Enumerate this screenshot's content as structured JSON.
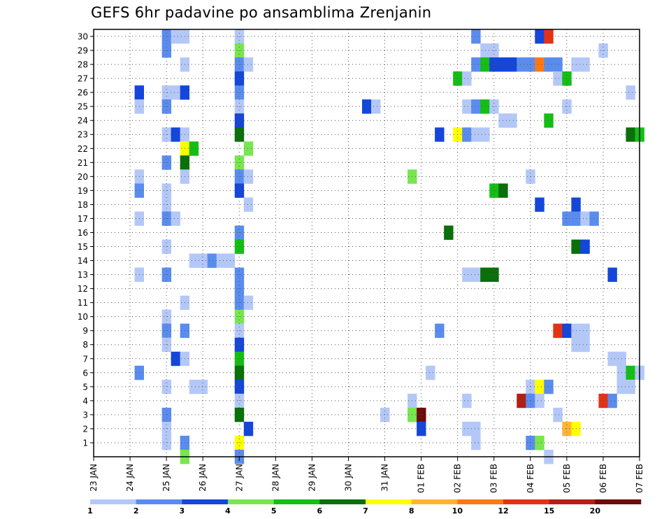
{
  "chart_data": {
    "type": "heatmap",
    "title": "GEFS 6hr padavine po ansamblima Zrenjanin",
    "xlabel": "",
    "ylabel": "",
    "y_ticks": [
      "1",
      "2",
      "3",
      "4",
      "5",
      "6",
      "7",
      "8",
      "9",
      "10",
      "11",
      "12",
      "13",
      "14",
      "15",
      "16",
      "17",
      "18",
      "19",
      "20",
      "21",
      "22",
      "23",
      "24",
      "25",
      "26",
      "27",
      "28",
      "29",
      "30"
    ],
    "x_tick_labels": [
      "23 JAN",
      "24 JAN",
      "25 JAN",
      "26 JAN",
      "27 JAN",
      "28 JAN",
      "29 JAN",
      "30 JAN",
      "31 JAN",
      "01 FEB",
      "02 FEB",
      "03 FEB",
      "04 FEB",
      "05 FEB",
      "06 FEB",
      "07 FEB"
    ],
    "x_range_days": [
      0,
      15
    ],
    "time_step_hours": 6,
    "grid": true,
    "colorbar": {
      "ticks": [
        "1",
        "2",
        "3",
        "4",
        "5",
        "6",
        "7",
        "8",
        "10",
        "12",
        "15",
        "20"
      ],
      "colors": [
        "#b4c8f8",
        "#5a8cee",
        "#1446dc",
        "#78e650",
        "#14be14",
        "#0a700a",
        "#ffff00",
        "#ffb432",
        "#ff7814",
        "#e63214",
        "#b41e14",
        "#6e0a0a"
      ]
    },
    "cells_day_member_level": [
      [
        1.25,
        26,
        3
      ],
      [
        1.25,
        25,
        1
      ],
      [
        1.25,
        20,
        1
      ],
      [
        1.25,
        19,
        2
      ],
      [
        1.25,
        17,
        1
      ],
      [
        1.25,
        13,
        1
      ],
      [
        1.25,
        6,
        2
      ],
      [
        2.0,
        30,
        2
      ],
      [
        2.0,
        29,
        2
      ],
      [
        2.0,
        26,
        1
      ],
      [
        2.0,
        25,
        2
      ],
      [
        2.0,
        23,
        1
      ],
      [
        2.0,
        21,
        2
      ],
      [
        2.0,
        19,
        1
      ],
      [
        2.0,
        18,
        1
      ],
      [
        2.0,
        17,
        2
      ],
      [
        2.0,
        15,
        1
      ],
      [
        2.0,
        13,
        2
      ],
      [
        2.0,
        10,
        1
      ],
      [
        2.0,
        9,
        2
      ],
      [
        2.0,
        8,
        1
      ],
      [
        2.0,
        5,
        1
      ],
      [
        2.0,
        3,
        2
      ],
      [
        2.0,
        2,
        1
      ],
      [
        2.0,
        1,
        1
      ],
      [
        2.25,
        30,
        1
      ],
      [
        2.25,
        26,
        1
      ],
      [
        2.25,
        23,
        3
      ],
      [
        2.25,
        17,
        1
      ],
      [
        2.25,
        7,
        3
      ],
      [
        2.5,
        30,
        1
      ],
      [
        2.5,
        28,
        1
      ],
      [
        2.5,
        26,
        3
      ],
      [
        2.5,
        23,
        1
      ],
      [
        2.5,
        22,
        7
      ],
      [
        2.5,
        21,
        6
      ],
      [
        2.5,
        20,
        1
      ],
      [
        2.5,
        11,
        1
      ],
      [
        2.5,
        9,
        2
      ],
      [
        2.5,
        7,
        1
      ],
      [
        2.5,
        1,
        2
      ],
      [
        2.5,
        0,
        4
      ],
      [
        2.75,
        22,
        5
      ],
      [
        2.75,
        14,
        1
      ],
      [
        2.75,
        5,
        1
      ],
      [
        3.0,
        14,
        1
      ],
      [
        3.0,
        5,
        1
      ],
      [
        3.25,
        14,
        2
      ],
      [
        3.5,
        14,
        1
      ],
      [
        3.75,
        14,
        1
      ],
      [
        4.0,
        30,
        1
      ],
      [
        4.0,
        29,
        4
      ],
      [
        4.0,
        28,
        2
      ],
      [
        4.0,
        27,
        3
      ],
      [
        4.0,
        26,
        2
      ],
      [
        4.0,
        25,
        1
      ],
      [
        4.0,
        24,
        3
      ],
      [
        4.0,
        23,
        6
      ],
      [
        4.0,
        21,
        4
      ],
      [
        4.0,
        20,
        2
      ],
      [
        4.0,
        19,
        3
      ],
      [
        4.0,
        16,
        2
      ],
      [
        4.0,
        15,
        5
      ],
      [
        4.0,
        13,
        2
      ],
      [
        4.0,
        12,
        2
      ],
      [
        4.0,
        11,
        2
      ],
      [
        4.0,
        10,
        4
      ],
      [
        4.0,
        9,
        1
      ],
      [
        4.0,
        8,
        3
      ],
      [
        4.0,
        7,
        5
      ],
      [
        4.0,
        6,
        6
      ],
      [
        4.0,
        5,
        3
      ],
      [
        4.0,
        4,
        1
      ],
      [
        4.0,
        3,
        6
      ],
      [
        4.0,
        1,
        7
      ],
      [
        4.0,
        0,
        2
      ],
      [
        4.25,
        28,
        1
      ],
      [
        4.25,
        22,
        4
      ],
      [
        4.25,
        20,
        1
      ],
      [
        4.25,
        18,
        1
      ],
      [
        4.25,
        11,
        1
      ],
      [
        4.25,
        2,
        3
      ],
      [
        7.5,
        25,
        3
      ],
      [
        7.75,
        25,
        1
      ],
      [
        8.0,
        3,
        1
      ],
      [
        8.75,
        20,
        4
      ],
      [
        8.75,
        4,
        1
      ],
      [
        8.75,
        3,
        4
      ],
      [
        9.0,
        3,
        12
      ],
      [
        9.0,
        2,
        3
      ],
      [
        9.25,
        6,
        1
      ],
      [
        9.5,
        23,
        3
      ],
      [
        9.5,
        9,
        2
      ],
      [
        9.75,
        16,
        6
      ],
      [
        10.0,
        27,
        5
      ],
      [
        10.0,
        23,
        7
      ],
      [
        10.25,
        27,
        1
      ],
      [
        10.25,
        25,
        1
      ],
      [
        10.25,
        23,
        2
      ],
      [
        10.25,
        13,
        1
      ],
      [
        10.25,
        4,
        1
      ],
      [
        10.25,
        2,
        1
      ],
      [
        10.5,
        30,
        2
      ],
      [
        10.5,
        28,
        2
      ],
      [
        10.5,
        25,
        2
      ],
      [
        10.5,
        23,
        1
      ],
      [
        10.5,
        13,
        1
      ],
      [
        10.5,
        2,
        1
      ],
      [
        10.5,
        1,
        1
      ],
      [
        10.75,
        29,
        1
      ],
      [
        10.75,
        28,
        5
      ],
      [
        10.75,
        25,
        5
      ],
      [
        10.75,
        23,
        1
      ],
      [
        10.75,
        13,
        6
      ],
      [
        11.0,
        29,
        1
      ],
      [
        11.0,
        28,
        3
      ],
      [
        11.0,
        25,
        1
      ],
      [
        11.0,
        19,
        5
      ],
      [
        11.0,
        13,
        6
      ],
      [
        11.25,
        28,
        3
      ],
      [
        11.25,
        24,
        1
      ],
      [
        11.25,
        19,
        6
      ],
      [
        11.5,
        28,
        3
      ],
      [
        11.5,
        24,
        1
      ],
      [
        11.75,
        28,
        2
      ],
      [
        11.75,
        4,
        11
      ],
      [
        12.0,
        28,
        2
      ],
      [
        12.0,
        20,
        1
      ],
      [
        12.0,
        5,
        1
      ],
      [
        12.0,
        4,
        2
      ],
      [
        12.0,
        1,
        2
      ],
      [
        12.25,
        30,
        3
      ],
      [
        12.25,
        28,
        9
      ],
      [
        12.25,
        18,
        3
      ],
      [
        12.25,
        5,
        7
      ],
      [
        12.25,
        4,
        1
      ],
      [
        12.25,
        1,
        4
      ],
      [
        12.5,
        30,
        10
      ],
      [
        12.5,
        28,
        2
      ],
      [
        12.5,
        24,
        5
      ],
      [
        12.5,
        5,
        2
      ],
      [
        12.5,
        0,
        1
      ],
      [
        12.75,
        28,
        2
      ],
      [
        12.75,
        27,
        1
      ],
      [
        12.75,
        9,
        10
      ],
      [
        12.75,
        3,
        1
      ],
      [
        13.0,
        27,
        5
      ],
      [
        13.0,
        25,
        1
      ],
      [
        13.0,
        17,
        2
      ],
      [
        13.0,
        9,
        3
      ],
      [
        13.0,
        2,
        8
      ],
      [
        13.25,
        28,
        1
      ],
      [
        13.25,
        18,
        3
      ],
      [
        13.25,
        17,
        2
      ],
      [
        13.25,
        15,
        6
      ],
      [
        13.25,
        9,
        1
      ],
      [
        13.25,
        8,
        1
      ],
      [
        13.25,
        2,
        7
      ],
      [
        13.5,
        28,
        1
      ],
      [
        13.5,
        17,
        1
      ],
      [
        13.5,
        15,
        3
      ],
      [
        13.5,
        9,
        1
      ],
      [
        13.5,
        8,
        1
      ],
      [
        13.75,
        17,
        2
      ],
      [
        14.0,
        29,
        1
      ],
      [
        14.0,
        4,
        10
      ],
      [
        14.25,
        13,
        3
      ],
      [
        14.25,
        7,
        1
      ],
      [
        14.25,
        4,
        2
      ],
      [
        14.5,
        7,
        1
      ],
      [
        14.5,
        6,
        1
      ],
      [
        14.5,
        5,
        1
      ],
      [
        14.75,
        26,
        1
      ],
      [
        14.75,
        23,
        6
      ],
      [
        14.75,
        6,
        5
      ],
      [
        14.75,
        5,
        1
      ],
      [
        15.0,
        23,
        5
      ],
      [
        15.0,
        6,
        1
      ]
    ]
  }
}
